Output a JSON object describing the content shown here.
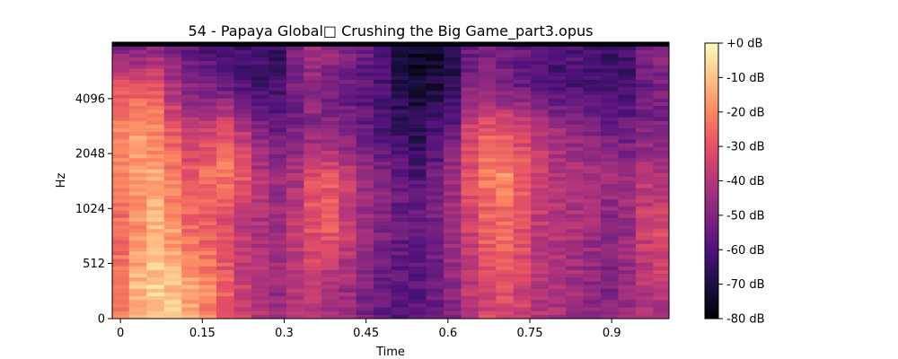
{
  "chart_data": {
    "type": "heatmap",
    "title": "54 - Papaya Global□ Crushing the Big Game_part3.opus",
    "xlabel": "Time",
    "ylabel": "Hz",
    "x_ticks": [
      "0",
      "0.15",
      "0.3",
      "0.45",
      "0.6",
      "0.75",
      "0.9"
    ],
    "x_tick_values": [
      0,
      0.15,
      0.3,
      0.45,
      0.6,
      0.75,
      0.9
    ],
    "xlim": [
      -0.015,
      1.005
    ],
    "y_scale": "log2 (mel-like)",
    "y_ticks": [
      "0",
      "512",
      "1024",
      "2048",
      "4096"
    ],
    "y_tick_values": [
      0,
      512,
      1024,
      2048,
      4096
    ],
    "ylim": [
      0,
      11025
    ],
    "colorbar": {
      "colormap": "magma",
      "range_db": [
        -80,
        0
      ],
      "ticks": [
        "+0 dB",
        "-10 dB",
        "-20 dB",
        "-30 dB",
        "-40 dB",
        "-50 dB",
        "-60 dB",
        "-70 dB",
        "-80 dB"
      ],
      "tick_values": [
        0,
        -10,
        -20,
        -30,
        -40,
        -50,
        -60,
        -70,
        -80
      ]
    },
    "time_columns": [
      0,
      0.032,
      0.064,
      0.096,
      0.128,
      0.16,
      0.192,
      0.224,
      0.256,
      0.288,
      0.32,
      0.352,
      0.384,
      0.416,
      0.448,
      0.48,
      0.512,
      0.544,
      0.576,
      0.608,
      0.64,
      0.672,
      0.704,
      0.736,
      0.768,
      0.8,
      0.832,
      0.864,
      0.896,
      0.928,
      0.96,
      0.992
    ],
    "band_centers_hz": [
      64,
      380,
      820,
      1550,
      2800,
      4700,
      7500
    ],
    "band_db": [
      [
        -15,
        -22,
        -12,
        -10,
        -18,
        -25,
        -30,
        -35,
        -40,
        -48,
        -50,
        -45,
        -45,
        -45,
        -50,
        -55,
        -55,
        -58,
        -58,
        -52,
        -45,
        -40,
        -38,
        -38,
        -42,
        -45,
        -45,
        -48,
        -50,
        -50,
        -55,
        -58
      ],
      [
        -22,
        -12,
        -8,
        -10,
        -15,
        -20,
        -28,
        -35,
        -40,
        -45,
        -40,
        -38,
        -42,
        -45,
        -52,
        -55,
        -58,
        -58,
        -55,
        -48,
        -38,
        -32,
        -30,
        -35,
        -40,
        -42,
        -45,
        -48,
        -50,
        -45,
        -40,
        -38
      ],
      [
        -25,
        -18,
        -12,
        -18,
        -25,
        -28,
        -32,
        -38,
        -42,
        -45,
        -38,
        -30,
        -28,
        -35,
        -45,
        -50,
        -55,
        -55,
        -52,
        -45,
        -35,
        -28,
        -25,
        -30,
        -38,
        -40,
        -42,
        -45,
        -48,
        -45,
        -35,
        -32
      ],
      [
        -20,
        -15,
        -15,
        -22,
        -28,
        -25,
        -22,
        -30,
        -40,
        -45,
        -42,
        -32,
        -30,
        -38,
        -45,
        -50,
        -55,
        -60,
        -55,
        -45,
        -30,
        -22,
        -20,
        -28,
        -35,
        -40,
        -42,
        -42,
        -45,
        -45,
        -40,
        -42
      ],
      [
        -22,
        -18,
        -20,
        -30,
        -38,
        -35,
        -30,
        -40,
        -50,
        -55,
        -52,
        -48,
        -50,
        -52,
        -55,
        -60,
        -65,
        -68,
        -62,
        -55,
        -35,
        -28,
        -30,
        -35,
        -40,
        -45,
        -48,
        -50,
        -55,
        -55,
        -50,
        -52
      ],
      [
        -30,
        -28,
        -30,
        -42,
        -50,
        -52,
        -55,
        -58,
        -62,
        -62,
        -52,
        -48,
        -52,
        -55,
        -58,
        -62,
        -68,
        -72,
        -70,
        -65,
        -50,
        -50,
        -52,
        -55,
        -58,
        -60,
        -60,
        -62,
        -62,
        -62,
        -55,
        -52
      ],
      [
        -50,
        -50,
        -48,
        -52,
        -55,
        -60,
        -62,
        -62,
        -64,
        -64,
        -50,
        -44,
        -45,
        -50,
        -55,
        -62,
        -72,
        -75,
        -74,
        -70,
        -55,
        -50,
        -52,
        -55,
        -58,
        -62,
        -60,
        -62,
        -64,
        -62,
        -50,
        -48
      ]
    ]
  }
}
